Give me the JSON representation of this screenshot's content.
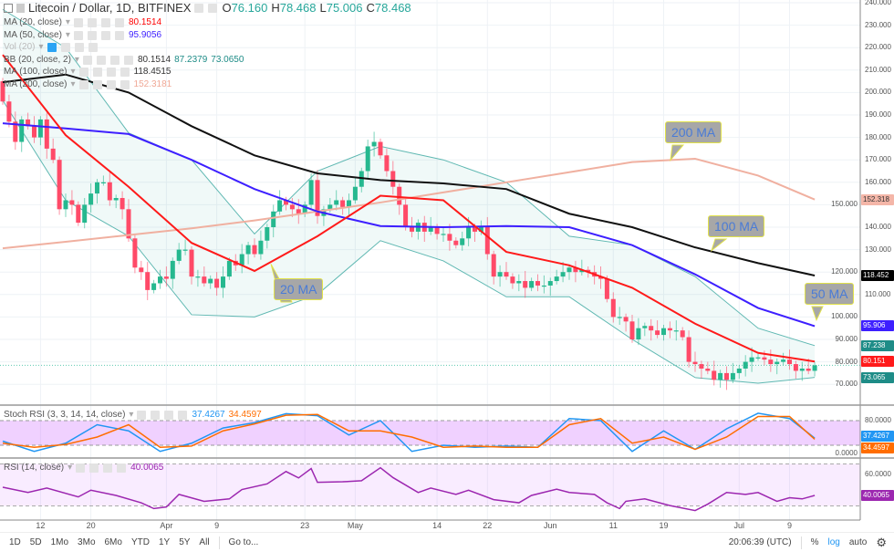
{
  "header": {
    "symbol": "Litecoin / Dollar, 1D, BITFINEX",
    "open": "76.160",
    "high": "78.468",
    "low": "75.006",
    "close": "78.468",
    "o": "O",
    "h": "H",
    "l": "L",
    "c": "C"
  },
  "indicators": [
    {
      "label": "MA (20, close)",
      "values": [
        "80.1514"
      ],
      "color": "#ff0000"
    },
    {
      "label": "MA (50, close)",
      "values": [
        "95.9056"
      ],
      "color": "#3d1fff"
    },
    {
      "label": "Vol (20)",
      "values": [],
      "color": "#bbbbbb"
    },
    {
      "label": "BB (20, close, 2)",
      "values": [
        "80.1514",
        "87.2379",
        "73.0650"
      ],
      "color": "#1e8c87"
    },
    {
      "label": "MA (100, close)",
      "values": [
        "118.4515"
      ],
      "color": "#000000"
    },
    {
      "label": "MA (200, close)",
      "values": [
        "152.3181"
      ],
      "color": "#f0a896"
    }
  ],
  "price_axis": [
    "240.000",
    "230.000",
    "220.000",
    "210.000",
    "200.000",
    "190.000",
    "180.000",
    "170.000",
    "160.000",
    "150.000",
    "140.000",
    "130.000",
    "120.000",
    "110.000",
    "100.000",
    "90.000",
    "80.000",
    "70.000"
  ],
  "price_tags": [
    {
      "value": "152.318",
      "price": 152.318,
      "bg": "#f4b6a8",
      "fg": "#333333"
    },
    {
      "value": "118.452",
      "price": 118.452,
      "bg": "#000000",
      "fg": "#ffffff"
    },
    {
      "value": "95.906",
      "price": 95.906,
      "bg": "#3d1fff",
      "fg": "#ffffff"
    },
    {
      "value": "87.238",
      "price": 87.238,
      "bg": "#1e8c87",
      "fg": "#ffffff"
    },
    {
      "value": "80.151",
      "price": 80.151,
      "bg": "#ff1a1a",
      "fg": "#ffffff"
    },
    {
      "value": "73.065",
      "price": 73.065,
      "bg": "#1e8c87",
      "fg": "#ffffff"
    }
  ],
  "last_close": 78.468,
  "colors": {
    "up": "#26b88f",
    "down": "#ff4a68",
    "ma20": "#ff1a1a",
    "ma50": "#3d1fff",
    "ma100": "#111111",
    "ma200": "#f0b0a0",
    "bb": "#5fb8b2",
    "stoch_k": "#2196f3",
    "stoch_d": "#ff6d00",
    "rsi": "#9c27b0"
  },
  "callouts": [
    {
      "label": "20 MA",
      "series": "ma20"
    },
    {
      "label": "200 MA",
      "series": "ma200"
    },
    {
      "label": "100 MA",
      "series": "ma100"
    },
    {
      "label": "50 MA",
      "series": "ma50"
    }
  ],
  "candles": {
    "first_date": "Mar 6",
    "closes": [
      196,
      187,
      178,
      188,
      185,
      180,
      188,
      175,
      170,
      148,
      152,
      150,
      142,
      150,
      155,
      160,
      160,
      152,
      153,
      148,
      135,
      122,
      120,
      112,
      115,
      118,
      117,
      125,
      130,
      130,
      118,
      118,
      115,
      117,
      113,
      118,
      125,
      123,
      128,
      132,
      128,
      134,
      140,
      147,
      152,
      150,
      148,
      146,
      150,
      161,
      145,
      148,
      150,
      152,
      149,
      152,
      158,
      165,
      176,
      178,
      172,
      165,
      158,
      150,
      140,
      138,
      142,
      138,
      140,
      137,
      137,
      134,
      132,
      135,
      140,
      138,
      140,
      128,
      118,
      120,
      118,
      115,
      116,
      113,
      116,
      114,
      114,
      116,
      118,
      120,
      122,
      120,
      121,
      120,
      118,
      117,
      108,
      100,
      100,
      98,
      90,
      95,
      96,
      94,
      92,
      95,
      94,
      94,
      91,
      80,
      79,
      77,
      76,
      72,
      75,
      72,
      75,
      77,
      80,
      82,
      82,
      81,
      79,
      80,
      81,
      79,
      76,
      77,
      76,
      78.468
    ]
  },
  "overlay_dates": [
    "Mar 6",
    "Mar 16",
    "Mar 26",
    "Apr 5",
    "Apr 15",
    "Apr 25",
    "May 5",
    "May 15",
    "May 25",
    "Jun 4",
    "Jun 14",
    "Jun 24",
    "Jul 4",
    "Jul 13"
  ],
  "overlays": {
    "ma200": [
      130.6,
      133.5,
      136.5,
      139.5,
      143,
      147,
      151,
      155.5,
      160,
      164.5,
      169,
      170.5,
      163,
      152.318
    ],
    "ma100": [
      204.6,
      208,
      200,
      185,
      172,
      164,
      161,
      159.5,
      157,
      146,
      140,
      131,
      124,
      118.452
    ],
    "ma50": [
      186.3,
      184,
      181.5,
      170,
      157,
      147,
      140.5,
      140,
      140.5,
      140,
      132,
      119,
      104,
      95.906
    ],
    "ma20": [
      216.8,
      181,
      158,
      133,
      120.5,
      136,
      154,
      152,
      129,
      123,
      113,
      97,
      84,
      80.151
    ],
    "bb_upper": [
      237,
      220,
      182,
      170,
      137,
      165,
      176,
      170,
      160,
      136,
      132,
      118,
      95,
      87.238
    ],
    "bb_lower": [
      196.5,
      152,
      136,
      101,
      100,
      110,
      134,
      125,
      109,
      109,
      90,
      73,
      70.5,
      73.065
    ]
  },
  "stoch_rsi": {
    "label": "Stoch RSI (3, 3, 14, 14, close)",
    "k_value": "37.4267",
    "d_value": "34.4597",
    "axis": [
      "80.0000",
      "0.0000"
    ],
    "dates": [
      "Mar 6",
      "Mar 11",
      "Mar 16",
      "Mar 21",
      "Mar 26",
      "Mar 31",
      "Apr 5",
      "Apr 10",
      "Apr 15",
      "Apr 20",
      "Apr 25",
      "Apr 30",
      "May 5",
      "May 10",
      "May 15",
      "May 20",
      "May 25",
      "May 30",
      "Jun 4",
      "Jun 9",
      "Jun 14",
      "Jun 19",
      "Jun 24",
      "Jun 29",
      "Jul 4",
      "Jul 9",
      "Jul 13"
    ],
    "k": [
      30,
      5,
      25,
      70,
      55,
      5,
      25,
      62,
      75,
      97,
      92,
      45,
      80,
      5,
      20,
      15,
      18,
      15,
      85,
      80,
      5,
      55,
      10,
      60,
      98,
      85,
      37.4267
    ],
    "d": [
      25,
      15,
      22,
      40,
      70,
      15,
      18,
      55,
      72,
      93,
      95,
      55,
      55,
      40,
      15,
      18,
      15,
      15,
      70,
      85,
      25,
      40,
      10,
      40,
      90,
      90,
      34.4597
    ],
    "band": [
      20,
      80
    ]
  },
  "rsi": {
    "label": "RSI (14, close)",
    "value": "40.0065",
    "axis": [
      "60.0000"
    ],
    "band": [
      30,
      70
    ],
    "points": [
      [
        "Mar 6",
        47.8
      ],
      [
        "Mar 10",
        42.8
      ],
      [
        "Mar 13",
        47
      ],
      [
        "Mar 18",
        38.6
      ],
      [
        "Mar 20",
        45
      ],
      [
        "Mar 24",
        40
      ],
      [
        "Mar 28",
        33
      ],
      [
        "Mar 30",
        27.5
      ],
      [
        "Apr 1",
        29
      ],
      [
        "Apr 3",
        41
      ],
      [
        "Apr 7",
        34.4
      ],
      [
        "Apr 11",
        36.7
      ],
      [
        "Apr 13",
        45.6
      ],
      [
        "Apr 17",
        51
      ],
      [
        "Apr 20",
        62.8
      ],
      [
        "Apr 22",
        56.7
      ],
      [
        "Apr 24",
        65.6
      ],
      [
        "Apr 25",
        52.5
      ],
      [
        "Apr 29",
        53
      ],
      [
        "May 2",
        54
      ],
      [
        "May 5",
        66.4
      ],
      [
        "May 7",
        57
      ],
      [
        "May 11",
        42.8
      ],
      [
        "May 13",
        47
      ],
      [
        "May 17",
        41
      ],
      [
        "May 19",
        45
      ],
      [
        "May 23",
        36
      ],
      [
        "May 27",
        33
      ],
      [
        "May 29",
        40
      ],
      [
        "Jun 2",
        46
      ],
      [
        "Jun 4",
        42.8
      ],
      [
        "Jun 8",
        41
      ],
      [
        "Jun 10",
        33
      ],
      [
        "Jun 12",
        27.5
      ],
      [
        "Jun 13",
        34.4
      ],
      [
        "Jun 16",
        36.7
      ],
      [
        "Jun 20",
        30.3
      ],
      [
        "Jun 24",
        25.6
      ],
      [
        "Jun 26",
        31.7
      ],
      [
        "Jun 29",
        42.8
      ],
      [
        "Jul 2",
        41
      ],
      [
        "Jul 4",
        42.8
      ],
      [
        "Jul 7",
        34.4
      ],
      [
        "Jul 9",
        37.8
      ],
      [
        "Jul 11",
        36.7
      ],
      [
        "Jul 13",
        40.0065
      ]
    ]
  },
  "date_axis": [
    {
      "label": "12",
      "date": "Mar 12"
    },
    {
      "label": "20",
      "date": "Mar 20"
    },
    {
      "label": "Apr",
      "date": "Apr 1"
    },
    {
      "label": "9",
      "date": "Apr 9"
    },
    {
      "label": "23",
      "date": "Apr 23"
    },
    {
      "label": "May",
      "date": "May 1"
    },
    {
      "label": "14",
      "date": "May 14"
    },
    {
      "label": "22",
      "date": "May 22"
    },
    {
      "label": "Jun",
      "date": "Jun 1"
    },
    {
      "label": "11",
      "date": "Jun 11"
    },
    {
      "label": "19",
      "date": "Jun 19"
    },
    {
      "label": "Jul",
      "date": "Jul 1"
    },
    {
      "label": "9",
      "date": "Jul 9"
    }
  ],
  "toolbar": {
    "ranges": [
      "1D",
      "5D",
      "1Mo",
      "3Mo",
      "6Mo",
      "YTD",
      "1Y",
      "5Y",
      "All"
    ],
    "goto": "Go to...",
    "time": "20:06:39 (UTC)",
    "percent": "%",
    "log": "log",
    "auto": "auto",
    "settings_icon": "gear-icon"
  }
}
